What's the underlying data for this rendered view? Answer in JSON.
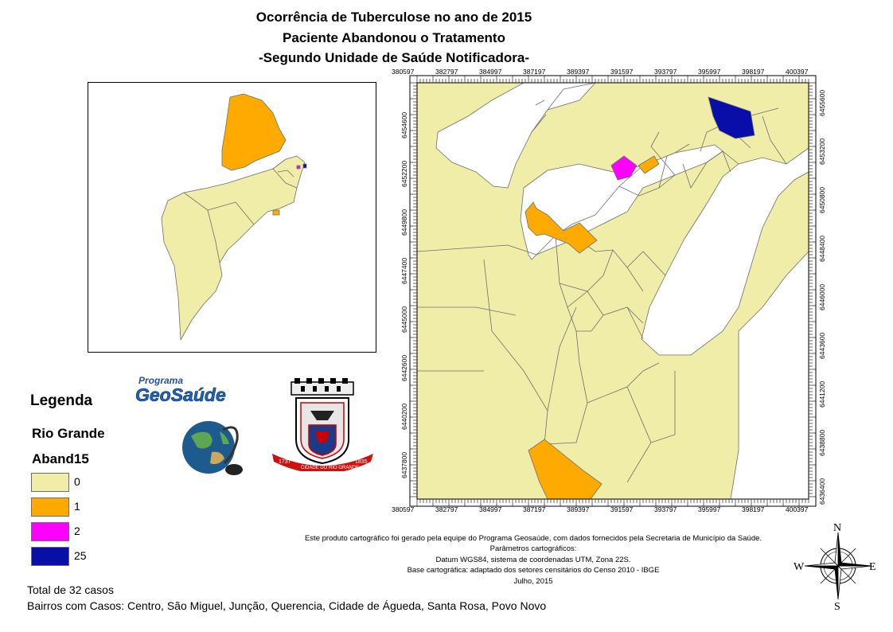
{
  "title": {
    "line1": "Ocorrência de Tuberculose no ano de 2015",
    "line2": "Paciente Abandonou o Tratamento",
    "line3": "-Segundo Unidade de Saúde Notificadora-"
  },
  "map": {
    "x_ticks": [
      "380597",
      "382797",
      "384997",
      "387197",
      "389397",
      "391597",
      "393797",
      "395997",
      "398197",
      "400397"
    ],
    "y_ticks_left": [
      "6454600",
      "6452200",
      "6449800",
      "6447400",
      "6445000",
      "6442600",
      "6440200",
      "6437800"
    ],
    "y_ticks_right": [
      "6455600",
      "6453200",
      "6450800",
      "6448400",
      "6446000",
      "6443600",
      "6441200",
      "6438800",
      "6436400"
    ],
    "colors": {
      "0": "#f0eda8",
      "1": "#ffaa00",
      "2": "#ff00ff",
      "25": "#0a0ea8",
      "water": "#ffffff",
      "border": "#6e6e6e"
    }
  },
  "logos": {
    "program_line1": "Programa",
    "program_line2": "GeoSaúde",
    "crest_years_left": "1737",
    "crest_banner": "CIDADE DO RIO GRANDE",
    "crest_years_right": "1835"
  },
  "legend": {
    "title": "Legenda",
    "layer": "Rio Grande",
    "field": "Aband15",
    "items": [
      {
        "label": "0",
        "color": "#f0eda8"
      },
      {
        "label": "1",
        "color": "#ffaa00"
      },
      {
        "label": "2",
        "color": "#ff00ff"
      },
      {
        "label": "25",
        "color": "#0a0ea8"
      }
    ]
  },
  "credits": {
    "line1": "Este produto cartográfico foi gerado pela equipe do Programa Geosaúde, com dados fornecidos pela Secretaria de Município da Saúde.",
    "line2": "Parâmetros cartográficos:",
    "line3": "Datum WGS84, sistema de coordenadas UTM, Zona 22S.",
    "line4": "Base cartográfica: adaptado dos setores censitários do Censo 2010 - IBGE",
    "line5": "Julho, 2015"
  },
  "compass": {
    "n": "N",
    "s": "S",
    "e": "E",
    "w": "W"
  },
  "footer": {
    "total": "Total de 32  casos",
    "bairros": "Bairros com Casos: Centro, São Miguel, Junção, Querencia, Cidade de Águeda, Santa Rosa, Povo Novo"
  }
}
